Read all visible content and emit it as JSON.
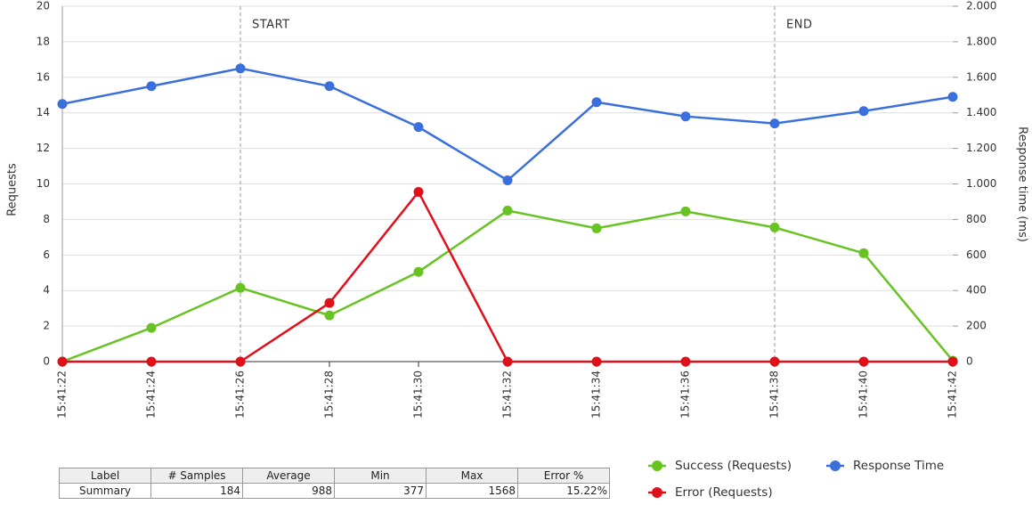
{
  "chart_data": {
    "type": "line",
    "ylabel": "Requests",
    "y2label": "Response time (ms)",
    "categories": [
      "15:41:22",
      "15:41:24",
      "15:41:26",
      "15:41:28",
      "15:41:30",
      "15:41:32",
      "15:41:34",
      "15:41:36",
      "15:41:38",
      "15:41:40",
      "15:41:42"
    ],
    "series": [
      {
        "name": "Success (Requests)",
        "color": "#66c322",
        "values": [
          0,
          1.9,
          4.15,
          2.6,
          5.05,
          8.5,
          7.5,
          8.45,
          7.55,
          6.1,
          0.05
        ]
      },
      {
        "name": "Response Time",
        "color": "#3b6fdc",
        "axis": "y2",
        "values": [
          1450,
          1550,
          1650,
          1550,
          1320,
          1020,
          1460,
          1380,
          1340,
          1410,
          1490
        ]
      },
      {
        "name": "Error (Requests)",
        "color": "#e0101a",
        "values": [
          0,
          0,
          0,
          3.3,
          9.55,
          0,
          0,
          0,
          0,
          0,
          0
        ]
      }
    ],
    "ylim": [
      0,
      20
    ],
    "yticks": [
      0,
      2,
      4,
      6,
      8,
      10,
      12,
      14,
      16,
      18,
      20
    ],
    "y2lim": [
      0,
      2000
    ],
    "y2ticks": [
      0,
      200,
      400,
      600,
      800,
      {
        "value": 1000,
        "label": "1.000"
      },
      {
        "value": 1200,
        "label": "1.200"
      },
      {
        "value": 1400,
        "label": "1.400"
      },
      {
        "value": 1600,
        "label": "1.600"
      },
      {
        "value": 1800,
        "label": "1.800"
      },
      {
        "value": 2000,
        "label": "2.000"
      }
    ],
    "grid": true,
    "legend": "bottom-right",
    "annotations": [
      {
        "label": "START",
        "x": "15:41:26"
      },
      {
        "label": "END",
        "x": "15:41:38"
      }
    ]
  },
  "table": {
    "columns": [
      "Label",
      "# Samples",
      "Average",
      "Min",
      "Max",
      "Error %"
    ],
    "rows": [
      [
        "Summary",
        184,
        988,
        377,
        1568,
        "15.22%"
      ]
    ]
  }
}
